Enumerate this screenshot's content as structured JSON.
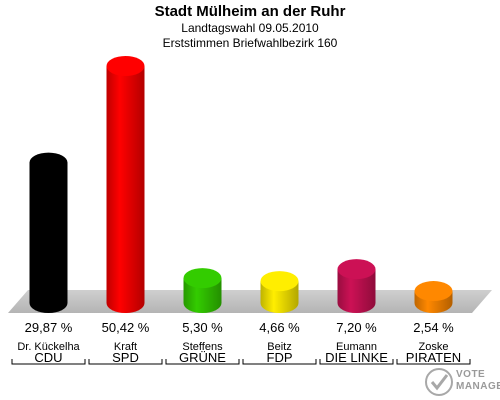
{
  "header": {
    "title": "Stadt Mülheim an der Ruhr",
    "subtitle1": "Landtagswahl 09.05.2010",
    "subtitle2": "Erststimmen Briefwahlbezirk 160"
  },
  "chart_data": {
    "type": "bar",
    "title": "Stadt Mülheim an der Ruhr",
    "subtitle": "Landtagswahl 09.05.2010 / Erststimmen Briefwahlbezirk 160",
    "xlabel": "",
    "ylabel": "",
    "grid": false,
    "legend": "none",
    "categories": [
      "CDU",
      "SPD",
      "GRÜNE",
      "FDP",
      "DIE LINKE",
      "PIRATEN"
    ],
    "candidates": [
      "Dr. Kückelha",
      "Kraft",
      "Steffens",
      "Beitz",
      "Eumann",
      "Zoske"
    ],
    "values": [
      29.87,
      50.42,
      5.3,
      4.66,
      7.2,
      2.54
    ],
    "value_labels": [
      "29,87 %",
      "50,42 %",
      "5,30 %",
      "4,66 %",
      "7,20 %",
      "2,54 %"
    ],
    "colors": [
      "#000000",
      "#ff0000",
      "#33cc00",
      "#ffee00",
      "#cc1155",
      "#ff8800"
    ]
  },
  "watermark": {
    "line1": "VOTE",
    "line2": "MANAGER",
    "icon": "check-mark-icon"
  }
}
